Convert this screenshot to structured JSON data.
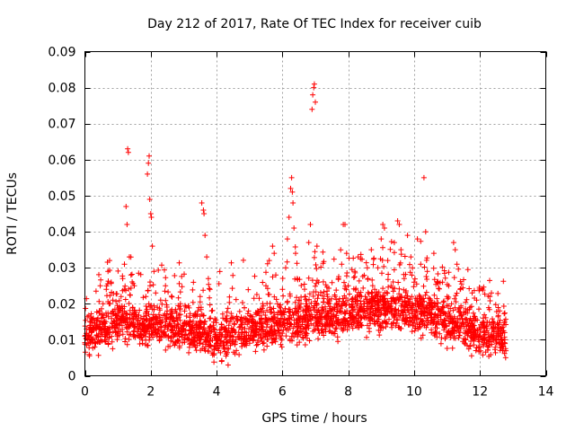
{
  "chart_data": {
    "type": "scatter",
    "title": "Day 212 of 2017, Rate Of TEC Index for receiver cuib",
    "xlabel": "GPS time / hours",
    "ylabel": "ROTI / TECUs",
    "xlim": [
      0,
      14
    ],
    "ylim": [
      0,
      0.09
    ],
    "xticks": [
      0,
      2,
      4,
      6,
      8,
      10,
      12,
      14
    ],
    "xtick_labels": [
      "0",
      "2",
      "4",
      "6",
      "8",
      "10",
      "12",
      "14"
    ],
    "yticks": [
      0,
      0.01,
      0.02,
      0.03,
      0.04,
      0.05,
      0.06,
      0.07,
      0.08,
      0.09
    ],
    "ytick_labels": [
      "0",
      "0.01",
      "0.02",
      "0.03",
      "0.04",
      "0.05",
      "0.06",
      "0.07",
      "0.08",
      "0.09"
    ],
    "grid": true,
    "marker": "+",
    "color": "#ff0000",
    "points": [
      [
        0.0,
        0.011
      ],
      [
        0.05,
        0.013
      ],
      [
        0.1,
        0.009
      ],
      [
        0.15,
        0.015
      ],
      [
        0.2,
        0.012
      ],
      [
        0.25,
        0.016
      ],
      [
        0.3,
        0.008
      ],
      [
        0.35,
        0.014
      ],
      [
        0.4,
        0.011
      ],
      [
        0.45,
        0.018
      ],
      [
        0.5,
        0.013
      ],
      [
        0.55,
        0.02
      ],
      [
        0.6,
        0.01
      ],
      [
        0.65,
        0.024
      ],
      [
        0.7,
        0.029
      ],
      [
        0.75,
        0.032
      ],
      [
        0.8,
        0.026
      ],
      [
        0.85,
        0.021
      ],
      [
        0.9,
        0.015
      ],
      [
        0.95,
        0.012
      ],
      [
        1.0,
        0.018
      ],
      [
        1.05,
        0.014
      ],
      [
        1.1,
        0.022
      ],
      [
        1.15,
        0.027
      ],
      [
        1.2,
        0.031
      ],
      [
        1.25,
        0.047
      ],
      [
        1.28,
        0.042
      ],
      [
        1.3,
        0.063
      ],
      [
        1.32,
        0.062
      ],
      [
        1.35,
        0.033
      ],
      [
        1.4,
        0.028
      ],
      [
        1.45,
        0.019
      ],
      [
        1.5,
        0.025
      ],
      [
        1.55,
        0.017
      ],
      [
        1.6,
        0.013
      ],
      [
        1.65,
        0.011
      ],
      [
        1.7,
        0.016
      ],
      [
        1.75,
        0.009
      ],
      [
        1.8,
        0.014
      ],
      [
        1.85,
        0.022
      ],
      [
        1.9,
        0.056
      ],
      [
        1.93,
        0.059
      ],
      [
        1.95,
        0.061
      ],
      [
        1.97,
        0.049
      ],
      [
        2.0,
        0.045
      ],
      [
        2.02,
        0.044
      ],
      [
        2.05,
        0.036
      ],
      [
        2.1,
        0.029
      ],
      [
        2.15,
        0.023
      ],
      [
        2.2,
        0.019
      ],
      [
        2.25,
        0.017
      ],
      [
        2.3,
        0.021
      ],
      [
        2.35,
        0.015
      ],
      [
        2.4,
        0.012
      ],
      [
        2.5,
        0.018
      ],
      [
        2.6,
        0.014
      ],
      [
        2.7,
        0.011
      ],
      [
        2.8,
        0.016
      ],
      [
        2.9,
        0.02
      ],
      [
        3.0,
        0.013
      ],
      [
        3.1,
        0.01
      ],
      [
        3.2,
        0.015
      ],
      [
        3.3,
        0.012
      ],
      [
        3.4,
        0.017
      ],
      [
        3.5,
        0.022
      ],
      [
        3.55,
        0.048
      ],
      [
        3.6,
        0.046
      ],
      [
        3.62,
        0.045
      ],
      [
        3.65,
        0.039
      ],
      [
        3.7,
        0.033
      ],
      [
        3.75,
        0.027
      ],
      [
        3.8,
        0.024
      ],
      [
        3.85,
        0.018
      ],
      [
        3.9,
        0.014
      ],
      [
        3.95,
        0.011
      ],
      [
        4.0,
        0.009
      ],
      [
        4.1,
        0.012
      ],
      [
        4.2,
        0.008
      ],
      [
        4.3,
        0.006
      ],
      [
        4.35,
        0.003
      ],
      [
        4.4,
        0.01
      ],
      [
        4.5,
        0.013
      ],
      [
        4.6,
        0.007
      ],
      [
        4.7,
        0.011
      ],
      [
        4.8,
        0.009
      ],
      [
        4.9,
        0.012
      ],
      [
        5.0,
        0.015
      ],
      [
        5.1,
        0.01
      ],
      [
        5.2,
        0.017
      ],
      [
        5.3,
        0.013
      ],
      [
        5.4,
        0.02
      ],
      [
        5.5,
        0.025
      ],
      [
        5.6,
        0.032
      ],
      [
        5.7,
        0.036
      ],
      [
        5.75,
        0.034
      ],
      [
        5.8,
        0.028
      ],
      [
        5.85,
        0.02
      ],
      [
        5.9,
        0.012
      ],
      [
        5.95,
        0.018
      ],
      [
        6.0,
        0.024
      ],
      [
        6.1,
        0.03
      ],
      [
        6.15,
        0.038
      ],
      [
        6.2,
        0.044
      ],
      [
        6.25,
        0.052
      ],
      [
        6.28,
        0.055
      ],
      [
        6.3,
        0.051
      ],
      [
        6.32,
        0.048
      ],
      [
        6.35,
        0.041
      ],
      [
        6.4,
        0.034
      ],
      [
        6.45,
        0.027
      ],
      [
        6.5,
        0.021
      ],
      [
        6.6,
        0.016
      ],
      [
        6.7,
        0.022
      ],
      [
        6.8,
        0.037
      ],
      [
        6.85,
        0.042
      ],
      [
        6.9,
        0.074
      ],
      [
        6.92,
        0.078
      ],
      [
        6.95,
        0.08
      ],
      [
        6.97,
        0.081
      ],
      [
        7.0,
        0.076
      ],
      [
        7.05,
        0.036
      ],
      [
        7.1,
        0.026
      ],
      [
        7.2,
        0.018
      ],
      [
        7.3,
        0.013
      ],
      [
        7.4,
        0.02
      ],
      [
        7.5,
        0.015
      ],
      [
        7.6,
        0.022
      ],
      [
        7.7,
        0.027
      ],
      [
        7.8,
        0.031
      ],
      [
        7.85,
        0.042
      ],
      [
        7.9,
        0.042
      ],
      [
        7.95,
        0.034
      ],
      [
        8.0,
        0.025
      ],
      [
        8.1,
        0.019
      ],
      [
        8.2,
        0.029
      ],
      [
        8.3,
        0.033
      ],
      [
        8.4,
        0.022
      ],
      [
        8.5,
        0.016
      ],
      [
        8.6,
        0.027
      ],
      [
        8.7,
        0.035
      ],
      [
        8.8,
        0.024
      ],
      [
        8.9,
        0.03
      ],
      [
        9.0,
        0.038
      ],
      [
        9.05,
        0.042
      ],
      [
        9.1,
        0.041
      ],
      [
        9.2,
        0.032
      ],
      [
        9.3,
        0.025
      ],
      [
        9.4,
        0.037
      ],
      [
        9.5,
        0.043
      ],
      [
        9.55,
        0.042
      ],
      [
        9.6,
        0.035
      ],
      [
        9.7,
        0.027
      ],
      [
        9.8,
        0.039
      ],
      [
        9.9,
        0.033
      ],
      [
        10.0,
        0.026
      ],
      [
        10.1,
        0.038
      ],
      [
        10.2,
        0.031
      ],
      [
        10.3,
        0.055
      ],
      [
        10.35,
        0.04
      ],
      [
        10.4,
        0.029
      ],
      [
        10.5,
        0.021
      ],
      [
        10.6,
        0.034
      ],
      [
        10.7,
        0.026
      ],
      [
        10.8,
        0.018
      ],
      [
        10.9,
        0.014
      ],
      [
        11.0,
        0.022
      ],
      [
        11.1,
        0.016
      ],
      [
        11.2,
        0.037
      ],
      [
        11.25,
        0.035
      ],
      [
        11.3,
        0.031
      ],
      [
        11.4,
        0.024
      ],
      [
        11.5,
        0.017
      ],
      [
        11.6,
        0.012
      ],
      [
        11.7,
        0.019
      ],
      [
        11.8,
        0.014
      ],
      [
        11.9,
        0.021
      ],
      [
        12.0,
        0.011
      ],
      [
        12.1,
        0.016
      ],
      [
        12.2,
        0.009
      ],
      [
        12.3,
        0.022
      ],
      [
        12.35,
        0.023
      ],
      [
        12.4,
        0.015
      ],
      [
        12.5,
        0.01
      ],
      [
        12.6,
        0.018
      ],
      [
        12.7,
        0.007
      ],
      [
        12.75,
        0.012
      ],
      [
        12.78,
        0.005
      ]
    ],
    "dense_band": {
      "x_range": [
        0,
        12.8
      ],
      "approx_count": 2600,
      "centers": [
        [
          0,
          0.011
        ],
        [
          1,
          0.015
        ],
        [
          2,
          0.014
        ],
        [
          3,
          0.013
        ],
        [
          4,
          0.01
        ],
        [
          5,
          0.013
        ],
        [
          6,
          0.015
        ],
        [
          7,
          0.016
        ],
        [
          8,
          0.017
        ],
        [
          9,
          0.019
        ],
        [
          10,
          0.018
        ],
        [
          11,
          0.015
        ],
        [
          12,
          0.012
        ],
        [
          12.8,
          0.011
        ]
      ],
      "spread": 0.006
    }
  }
}
